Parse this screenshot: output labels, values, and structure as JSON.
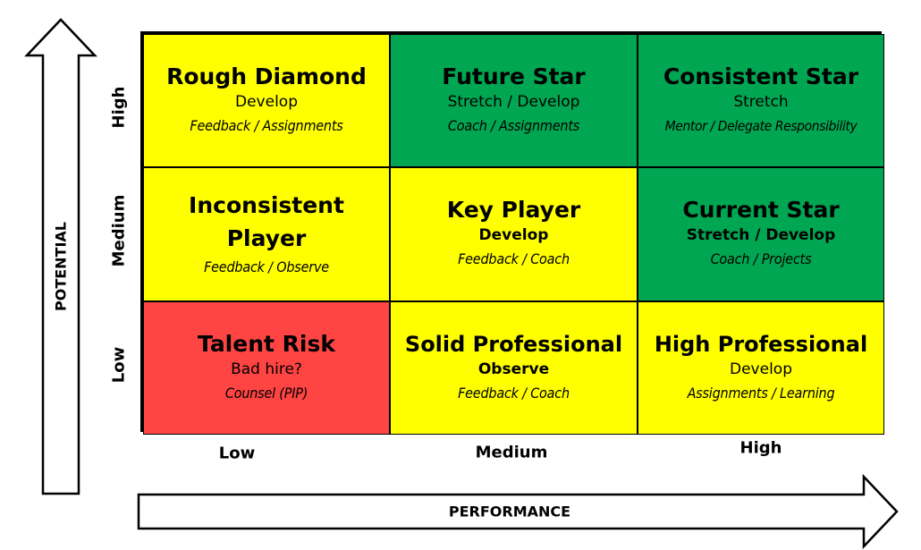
{
  "axes": {
    "y_title": "POTENTIAL",
    "x_title": "PERFORMANCE",
    "y_levels": [
      "High",
      "Medium",
      "Low"
    ],
    "x_levels": [
      "Low",
      "Medium",
      "High"
    ]
  },
  "colors": {
    "yellow": "#ffff00",
    "green": "#00a651",
    "red": "#ff4444"
  },
  "cells": [
    {
      "title": "Rough Diamond",
      "action": "Develop",
      "methods": "Feedback / Assignments",
      "color": "yellow",
      "action_bold": false
    },
    {
      "title": "Future Star",
      "action": "Stretch / Develop",
      "methods": "Coach / Assignments",
      "color": "green",
      "action_bold": false
    },
    {
      "title": "Consistent Star",
      "action": "Stretch",
      "methods": "Mentor / Delegate Responsibility",
      "color": "green",
      "action_bold": false
    },
    {
      "title": "Inconsistent Player",
      "action": "",
      "methods": "Feedback / Observe",
      "color": "yellow",
      "action_bold": false
    },
    {
      "title": "Key Player",
      "action": "Develop",
      "methods": "Feedback / Coach",
      "color": "yellow",
      "action_bold": true
    },
    {
      "title": "Current Star",
      "action": "Stretch / Develop",
      "methods": "Coach / Projects",
      "color": "green",
      "action_bold": true
    },
    {
      "title": "Talent Risk",
      "action": "Bad hire?",
      "methods": "Counsel (PIP)",
      "color": "red",
      "action_bold": false
    },
    {
      "title": "Solid Professional",
      "action": "Observe",
      "methods": "Feedback / Coach",
      "color": "yellow",
      "action_bold": true
    },
    {
      "title": "High Professional",
      "action": "Develop",
      "methods": "Assignments / Learning",
      "color": "yellow",
      "action_bold": false
    }
  ]
}
